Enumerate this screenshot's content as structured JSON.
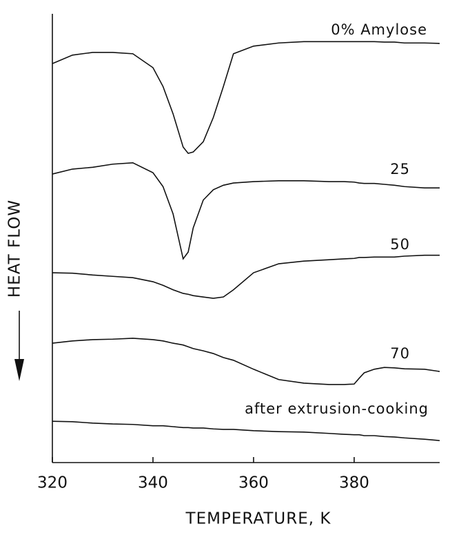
{
  "chart_data": {
    "type": "line",
    "x_label": "TEMPERATURE, K",
    "y_label": "HEAT FLOW",
    "xlim": [
      320,
      397
    ],
    "xticks": [
      320,
      340,
      360,
      380
    ],
    "ylim": [
      0,
      100
    ],
    "x": [
      320,
      324,
      328,
      332,
      336,
      340,
      342,
      344,
      346,
      347,
      348,
      350,
      352,
      354,
      356,
      360,
      365,
      370,
      375,
      378,
      380,
      381,
      382,
      384,
      386,
      388,
      390,
      394,
      397
    ],
    "series": [
      {
        "name": "0% Amylose",
        "color": "#111111",
        "values": [
          88.9,
          90.8,
          91.4,
          91.4,
          91.1,
          88.0,
          83.8,
          77.7,
          70.3,
          68.9,
          69.2,
          71.5,
          76.9,
          83.8,
          91.1,
          92.8,
          93.5,
          93.8,
          93.8,
          93.8,
          93.8,
          93.8,
          93.8,
          93.8,
          93.7,
          93.7,
          93.5,
          93.5,
          93.4
        ]
      },
      {
        "name": "25",
        "color": "#111111",
        "values": [
          64.3,
          65.4,
          65.8,
          66.5,
          66.8,
          64.6,
          61.5,
          55.4,
          45.4,
          46.9,
          52.3,
          58.5,
          60.8,
          61.8,
          62.3,
          62.6,
          62.8,
          62.8,
          62.6,
          62.6,
          62.5,
          62.3,
          62.2,
          62.2,
          62.0,
          61.8,
          61.5,
          61.2,
          61.2
        ]
      },
      {
        "name": "50",
        "color": "#111111",
        "values": [
          42.3,
          42.2,
          41.8,
          41.5,
          41.2,
          40.3,
          39.5,
          38.5,
          37.7,
          37.5,
          37.2,
          36.9,
          36.6,
          36.9,
          38.5,
          42.3,
          44.3,
          44.9,
          45.2,
          45.4,
          45.5,
          45.7,
          45.7,
          45.8,
          45.8,
          45.8,
          46.0,
          46.2,
          46.2
        ]
      },
      {
        "name": "70",
        "color": "#111111",
        "values": [
          26.6,
          27.1,
          27.4,
          27.5,
          27.7,
          27.4,
          27.1,
          26.6,
          26.2,
          25.8,
          25.4,
          24.9,
          24.3,
          23.4,
          22.8,
          20.8,
          18.5,
          17.7,
          17.4,
          17.4,
          17.5,
          18.8,
          20.0,
          20.8,
          21.2,
          21.1,
          20.9,
          20.8,
          20.3
        ]
      },
      {
        "name": "after extrusion-cooking",
        "color": "#111111",
        "values": [
          9.2,
          9.1,
          8.8,
          8.6,
          8.5,
          8.2,
          8.2,
          8.0,
          7.8,
          7.8,
          7.7,
          7.7,
          7.5,
          7.4,
          7.4,
          7.1,
          6.9,
          6.8,
          6.5,
          6.3,
          6.2,
          6.2,
          6.0,
          6.0,
          5.8,
          5.7,
          5.5,
          5.2,
          4.9
        ]
      }
    ]
  }
}
